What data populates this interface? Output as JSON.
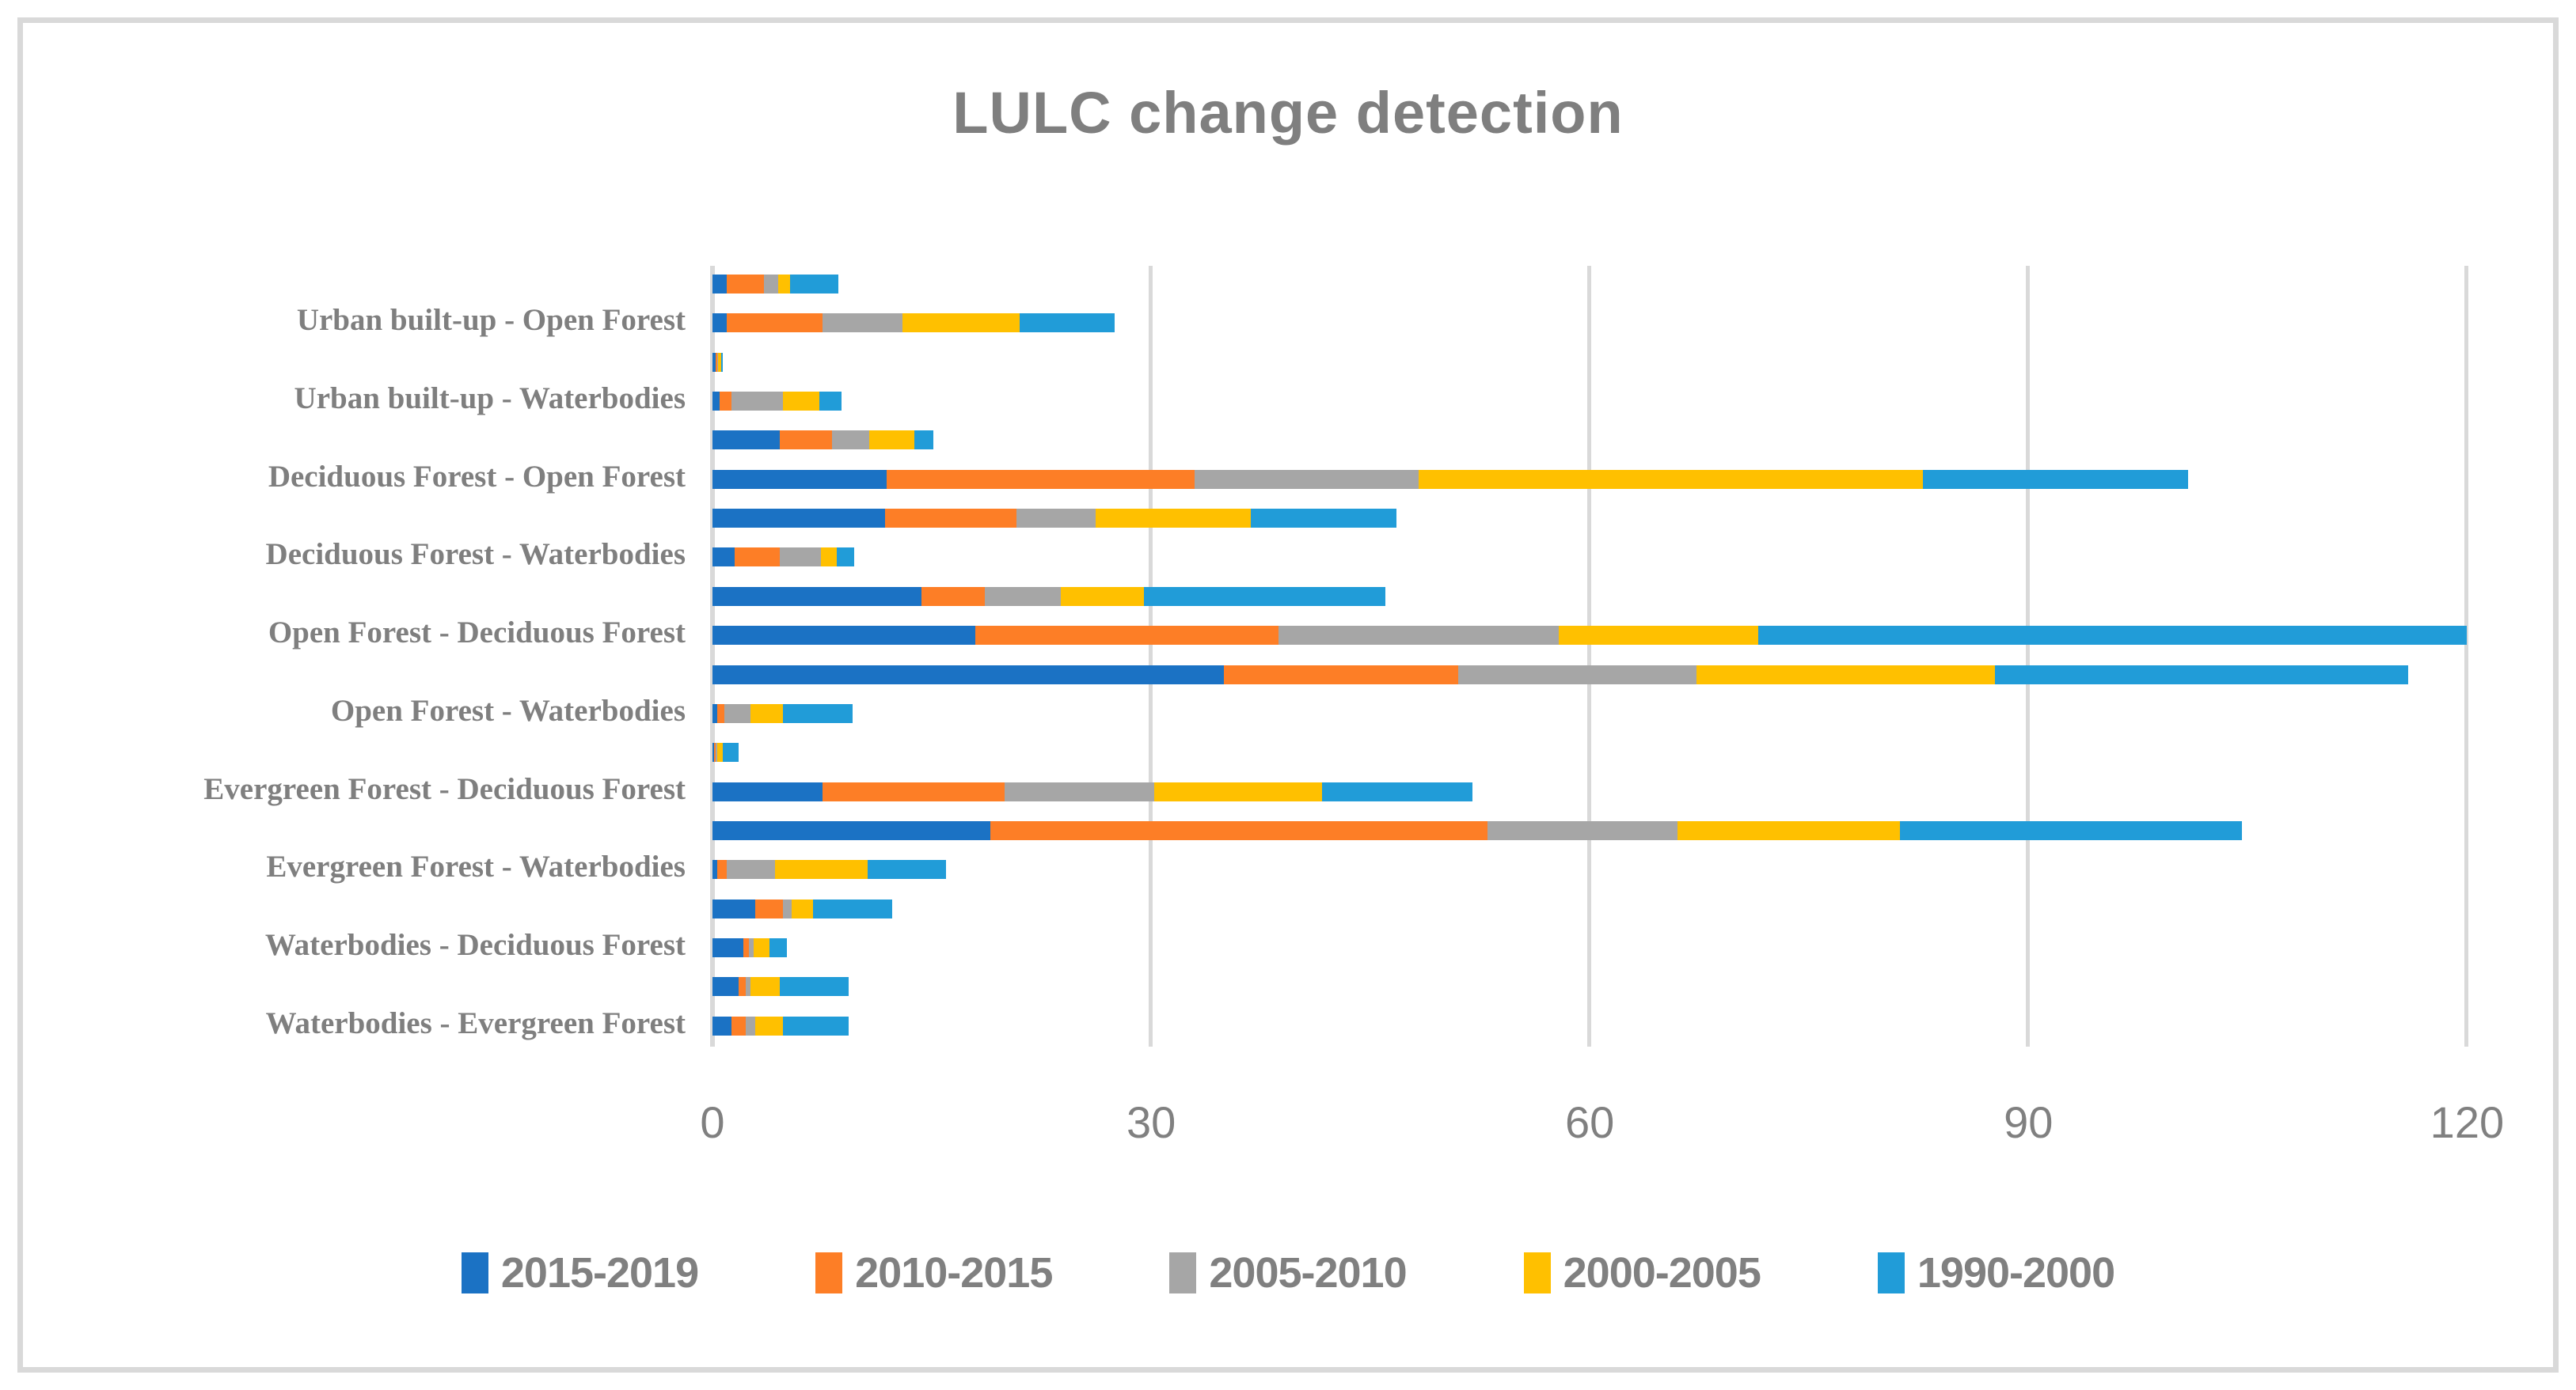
{
  "title": "LULC change detection",
  "colors": {
    "series_2015_2019": "#1B72C4",
    "series_2010_2015": "#FD7E26",
    "series_2005_2010": "#A6A6A6",
    "series_2000_2005": "#FFC000",
    "series_1990_2000": "#219CD8",
    "gridline": "#D9D9D9",
    "frame_border": "#D9D9D9",
    "title_text": "#7F7F7F",
    "category_text": "#7F7F7F",
    "tick_text": "#808080",
    "legend_text": "#808080"
  },
  "chart_data": {
    "type": "bar",
    "orientation": "horizontal",
    "stacked": true,
    "title": "LULC change detection",
    "xlabel": "",
    "ylabel": "",
    "xlim": [
      0,
      123.5
    ],
    "x_ticks": [
      0,
      30,
      60,
      90,
      120
    ],
    "grid": true,
    "legend_position": "bottom",
    "series_names": [
      "2015-2019",
      "2010-2015",
      "2005-2010",
      "2000-2005",
      "1990-2000"
    ],
    "series_colors": [
      "#1B72C4",
      "#FD7E26",
      "#A6A6A6",
      "#FFC000",
      "#219CD8"
    ],
    "note": "20 stacked rows top-to-bottom; axis shows labels for every second row only; values per row are in series order 2015-2019, 2010-2015, 2005-2010, 2000-2005, 1990-2000",
    "rows": [
      {
        "label": "",
        "values": [
          1.0,
          2.5,
          1.0,
          0.8,
          3.3
        ]
      },
      {
        "label": "Urban built-up - Open Forest",
        "values": [
          1.0,
          6.5,
          5.5,
          8.0,
          6.5
        ]
      },
      {
        "label": "",
        "values": [
          0.2,
          0.1,
          0.1,
          0.2,
          0.1
        ]
      },
      {
        "label": "Urban built-up - Waterbodies",
        "values": [
          0.5,
          0.8,
          3.5,
          2.5,
          1.5
        ]
      },
      {
        "label": "",
        "values": [
          4.6,
          3.6,
          2.5,
          3.1,
          1.3
        ]
      },
      {
        "label": "Deciduous Forest - Open Forest",
        "values": [
          11.9,
          21.1,
          15.3,
          34.5,
          18.1
        ]
      },
      {
        "label": "",
        "values": [
          11.8,
          9.0,
          5.4,
          10.6,
          10.0
        ]
      },
      {
        "label": "Deciduous Forest - Waterbodies",
        "values": [
          1.5,
          3.1,
          2.8,
          1.1,
          1.2
        ]
      },
      {
        "label": "",
        "values": [
          14.3,
          4.3,
          5.2,
          5.7,
          16.5
        ]
      },
      {
        "label": "Open Forest - Deciduous Forest",
        "values": [
          18.0,
          20.7,
          19.2,
          13.6,
          48.5
        ]
      },
      {
        "label": "",
        "values": [
          35.0,
          16.0,
          16.3,
          20.4,
          28.3
        ]
      },
      {
        "label": "Open Forest - Waterbodies",
        "values": [
          0.3,
          0.5,
          1.8,
          2.2,
          4.8
        ]
      },
      {
        "label": "",
        "values": [
          0.1,
          0.1,
          0.1,
          0.4,
          1.1
        ]
      },
      {
        "label": "Evergreen Forest - Deciduous Forest",
        "values": [
          7.5,
          12.5,
          10.2,
          11.5,
          10.3
        ]
      },
      {
        "label": "",
        "values": [
          19.0,
          34.0,
          13.0,
          15.2,
          23.4
        ]
      },
      {
        "label": "Evergreen Forest - Waterbodies",
        "values": [
          0.3,
          0.7,
          3.3,
          6.3,
          5.4
        ]
      },
      {
        "label": "",
        "values": [
          2.9,
          1.9,
          0.6,
          1.5,
          5.4
        ]
      },
      {
        "label": "Waterbodies - Deciduous Forest",
        "values": [
          2.1,
          0.4,
          0.3,
          1.1,
          1.2
        ]
      },
      {
        "label": "",
        "values": [
          1.8,
          0.5,
          0.3,
          2.0,
          4.7
        ]
      },
      {
        "label": "Waterbodies - Evergreen Forest",
        "values": [
          1.3,
          1.0,
          0.6,
          1.9,
          4.5
        ]
      }
    ]
  }
}
